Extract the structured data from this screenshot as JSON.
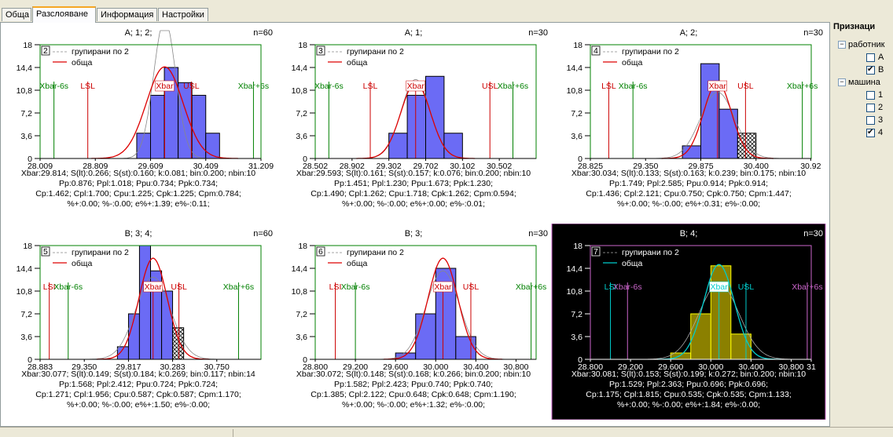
{
  "tabs": [
    "Обща",
    "Разслояване",
    "Информация",
    "Настройки"
  ],
  "active_tab": 1,
  "sidebar": {
    "title": "Признаци",
    "groups": [
      {
        "label": "работник",
        "items": [
          {
            "label": "А",
            "checked": false
          },
          {
            "label": "В",
            "checked": true
          }
        ]
      },
      {
        "label": "машина",
        "items": [
          {
            "label": "1",
            "checked": false
          },
          {
            "label": "2",
            "checked": false
          },
          {
            "label": "3",
            "checked": false
          },
          {
            "label": "4",
            "checked": true
          }
        ]
      }
    ]
  },
  "chart_data": [
    {
      "type": "bar",
      "title": "А; 1; 2;",
      "n": "n=60",
      "index": "2",
      "dark": false,
      "legend": [
        "групирани по 2",
        "обща"
      ],
      "yticks": [
        "18",
        "14,4",
        "10,8",
        "7,2",
        "3,6",
        "0"
      ],
      "xticks": [
        "28.009",
        "28.809",
        "29.609",
        "30.409",
        "31.209"
      ],
      "xlim": [
        28.009,
        31.209
      ],
      "ylim": [
        0,
        18
      ],
      "bins": [
        {
          "x0": 29.409,
          "x1": 29.609,
          "v": 4
        },
        {
          "x0": 29.609,
          "x1": 29.809,
          "v": 10
        },
        {
          "x0": 29.809,
          "x1": 30.009,
          "v": 14.4
        },
        {
          "x0": 30.009,
          "x1": 30.209,
          "v": 12
        },
        {
          "x0": 30.209,
          "x1": 30.409,
          "v": 10
        },
        {
          "x0": 30.409,
          "x1": 30.609,
          "v": 4
        }
      ],
      "hatched": [],
      "lines": [
        {
          "label": "Xbar-6s",
          "x": 28.21,
          "color": "#008000"
        },
        {
          "label": "LSL",
          "x": 28.7,
          "color": "#cc0000"
        },
        {
          "label": "Xbar",
          "x": 29.814,
          "color": "#cc0000"
        },
        {
          "label": "USL",
          "x": 30.2,
          "color": "#cc0000"
        },
        {
          "label": "Xbar+6s",
          "x": 31.1,
          "color": "#008000"
        }
      ],
      "curve": {
        "mean": 29.814,
        "sd": 0.266,
        "peak": 14.5
      },
      "curve2": {
        "mean": 29.814,
        "sd": 0.16,
        "peak": 22
      },
      "stats": [
        "Xbar:29.814; S(lt):0.266; S(st):0.160; k:0.081; bin:0.200; nbin:10",
        "Pp:0.876; Ppl:1.018; Ppu:0.734; Ppk:0.734;",
        "Cp:1.462; Cpl:1.700; Cpu:1.225; Cpk:1.225; Cpm:0.784;",
        "%+:0.00; %-:0.00; e%+:1.39; e%-:0.11;"
      ]
    },
    {
      "type": "bar",
      "title": "А; 1;",
      "n": "n=30",
      "index": "3",
      "dark": false,
      "legend": [
        "групирани по 2",
        "обща"
      ],
      "yticks": [
        "18",
        "14,4",
        "10,8",
        "7,2",
        "3,6",
        "0"
      ],
      "xticks": [
        "28.502",
        "28.902",
        "29.302",
        "29.702",
        "30.102",
        "30.502"
      ],
      "xlim": [
        28.502,
        30.902
      ],
      "ylim": [
        0,
        18
      ],
      "bins": [
        {
          "x0": 29.302,
          "x1": 29.502,
          "v": 4
        },
        {
          "x0": 29.502,
          "x1": 29.702,
          "v": 10
        },
        {
          "x0": 29.702,
          "x1": 29.902,
          "v": 13
        },
        {
          "x0": 29.902,
          "x1": 30.102,
          "v": 4
        }
      ],
      "hatched": [],
      "lines": [
        {
          "label": "Xbar-6s",
          "x": 28.65,
          "color": "#008000"
        },
        {
          "label": "LSL",
          "x": 29.1,
          "color": "#cc0000"
        },
        {
          "label": "Xbar",
          "x": 29.593,
          "color": "#cc0000"
        },
        {
          "label": "USL",
          "x": 30.4,
          "color": "#cc0000"
        },
        {
          "label": "Xbar+6s",
          "x": 30.65,
          "color": "#008000"
        }
      ],
      "curve": {
        "mean": 29.593,
        "sd": 0.161,
        "peak": 12
      },
      "curve2": {
        "mean": 29.593,
        "sd": 0.157,
        "peak": 12.5
      },
      "stats": [
        "Xbar:29.593; S(lt):0.161; S(st):0.157; k:0.076; bin:0.200; nbin:10",
        "Pp:1.451; Ppl:1.230; Ppu:1.673; Ppk:1.230;",
        "Cp:1.490; Cpl:1.262; Cpu:1.718; Cpk:1.262; Cpm:0.594;",
        "%+:0.00; %-:0.00; e%+:0.00; e%-:0.01;"
      ]
    },
    {
      "type": "bar",
      "title": "А; 2;",
      "n": "n=30",
      "index": "4",
      "dark": false,
      "legend": [
        "групирани по 2",
        "обща"
      ],
      "yticks": [
        "18",
        "14,4",
        "10,8",
        "7,2",
        "3,6",
        "0"
      ],
      "xticks": [
        "28.825",
        "29.350",
        "29.875",
        "30.400",
        "30.92"
      ],
      "xlim": [
        28.825,
        30.925
      ],
      "ylim": [
        0,
        18
      ],
      "bins": [
        {
          "x0": 29.7,
          "x1": 29.875,
          "v": 2
        },
        {
          "x0": 29.875,
          "x1": 30.05,
          "v": 15
        },
        {
          "x0": 30.05,
          "x1": 30.225,
          "v": 7.8
        }
      ],
      "hatched": [
        {
          "x0": 30.225,
          "x1": 30.4,
          "v": 4
        }
      ],
      "lines": [
        {
          "label": "LSL",
          "x": 29.0,
          "color": "#cc0000"
        },
        {
          "label": "Xbar-6s",
          "x": 29.23,
          "color": "#008000"
        },
        {
          "label": "Xbar",
          "x": 30.034,
          "color": "#cc0000"
        },
        {
          "label": "USL",
          "x": 30.3,
          "color": "#cc0000"
        },
        {
          "label": "Xbar+6s",
          "x": 30.84,
          "color": "#008000"
        }
      ],
      "curve": {
        "mean": 30.034,
        "sd": 0.133,
        "peak": 12
      },
      "curve2": {
        "mean": 30.034,
        "sd": 0.163,
        "peak": 10.5
      },
      "stats": [
        "Xbar:30.034; S(lt):0.133; S(st):0.163; k:0.239; bin:0.175; nbin:10",
        "Pp:1.749; Ppl:2.585; Ppu:0.914; Ppk:0.914;",
        "Cp:1.436; Cpl:2.121; Cpu:0.750; Cpk:0.750; Cpm:1.447;",
        "%+:0.00; %-:0.00; e%+:0.31; e%-:0.00;"
      ]
    },
    {
      "type": "bar",
      "title": "В; 3; 4;",
      "n": "n=60",
      "index": "5",
      "dark": false,
      "legend": [
        "групирани по 2",
        "обща"
      ],
      "yticks": [
        "18",
        "14,4",
        "10,8",
        "7,2",
        "3,6",
        "0"
      ],
      "xticks": [
        "28.883",
        "29.350",
        "29.817",
        "30.283",
        "30.750"
      ],
      "xlim": [
        28.883,
        31.217
      ],
      "ylim": [
        0,
        18
      ],
      "bins": [
        {
          "x0": 29.7,
          "x1": 29.817,
          "v": 2
        },
        {
          "x0": 29.817,
          "x1": 29.933,
          "v": 7.2
        },
        {
          "x0": 29.933,
          "x1": 30.05,
          "v": 18
        },
        {
          "x0": 30.05,
          "x1": 30.167,
          "v": 14
        },
        {
          "x0": 30.167,
          "x1": 30.283,
          "v": 10.8
        }
      ],
      "hatched": [
        {
          "x0": 30.283,
          "x1": 30.4,
          "v": 5
        }
      ],
      "lines": [
        {
          "label": "LSI",
          "x": 28.98,
          "color": "#cc0000"
        },
        {
          "label": "Xbar-6s",
          "x": 29.18,
          "color": "#008000"
        },
        {
          "label": "Xbar",
          "x": 30.077,
          "color": "#cc0000"
        },
        {
          "label": "USL",
          "x": 30.35,
          "color": "#cc0000"
        },
        {
          "label": "Xbar+6s",
          "x": 30.98,
          "color": "#008000"
        }
      ],
      "curve": {
        "mean": 30.077,
        "sd": 0.149,
        "peak": 16
      },
      "curve2": {
        "mean": 30.077,
        "sd": 0.184,
        "peak": 13
      },
      "stats": [
        "Xbar:30.077; S(lt):0.149; S(st):0.184; k:0.269; bin:0.117; nbin:14",
        "Pp:1.568; Ppl:2.412; Ppu:0.724; Ppk:0.724;",
        "Cp:1.271; Cpl:1.956; Cpu:0.587; Cpk:0.587; Cpm:1.170;",
        "%+:0.00; %-:0.00; e%+:1.50; e%-:0.00;"
      ]
    },
    {
      "type": "bar",
      "title": "В; 3;",
      "n": "n=30",
      "index": "6",
      "dark": false,
      "legend": [
        "групирани по 2",
        "обща"
      ],
      "yticks": [
        "18",
        "14,4",
        "10,8",
        "7,2",
        "3,6",
        "0"
      ],
      "xticks": [
        "28.800",
        "29.200",
        "29.600",
        "30.000",
        "30.400",
        "30.800"
      ],
      "xlim": [
        28.8,
        31.0
      ],
      "ylim": [
        0,
        18
      ],
      "bins": [
        {
          "x0": 29.6,
          "x1": 29.8,
          "v": 1
        },
        {
          "x0": 29.8,
          "x1": 30.0,
          "v": 7.2
        },
        {
          "x0": 30.0,
          "x1": 30.2,
          "v": 14.4
        },
        {
          "x0": 30.2,
          "x1": 30.4,
          "v": 3.6
        }
      ],
      "hatched": [],
      "lines": [
        {
          "label": "LSI",
          "x": 29.0,
          "color": "#cc0000"
        },
        {
          "label": "Xbar-6s",
          "x": 29.2,
          "color": "#008000"
        },
        {
          "label": "Xbar",
          "x": 30.072,
          "color": "#cc0000"
        },
        {
          "label": "USL",
          "x": 30.35,
          "color": "#cc0000"
        },
        {
          "label": "Xbar+6s",
          "x": 30.95,
          "color": "#008000"
        }
      ],
      "curve": {
        "mean": 30.072,
        "sd": 0.148,
        "peak": 16
      },
      "curve2": {
        "mean": 30.072,
        "sd": 0.168,
        "peak": 14
      },
      "stats": [
        "Xbar:30.072; S(lt):0.148; S(st):0.168; k:0.266; bin:0.200; nbin:10",
        "Pp:1.582; Ppl:2.423; Ppu:0.740; Ppk:0.740;",
        "Cp:1.385; Cpl:2.122; Cpu:0.648; Cpk:0.648; Cpm:1.190;",
        "%+:0.00; %-:0.00; e%+:1.32; e%-:0.00;"
      ]
    },
    {
      "type": "bar",
      "title": "В; 4;",
      "n": "n=30",
      "index": "7",
      "dark": true,
      "legend": [
        "групирани по 2",
        "обща"
      ],
      "yticks": [
        "18",
        "14,4",
        "10,8",
        "7,2",
        "3,6",
        "0"
      ],
      "xticks": [
        "28.800",
        "29.200",
        "29.600",
        "30.000",
        "30.400",
        "30.800",
        "31"
      ],
      "xlim": [
        28.8,
        31.0
      ],
      "ylim": [
        0,
        18
      ],
      "bins": [
        {
          "x0": 29.6,
          "x1": 29.8,
          "v": 1
        },
        {
          "x0": 29.8,
          "x1": 30.0,
          "v": 7.2
        },
        {
          "x0": 30.0,
          "x1": 30.2,
          "v": 14.8
        },
        {
          "x0": 30.2,
          "x1": 30.4,
          "v": 4
        }
      ],
      "hatched": [],
      "lines": [
        {
          "label": "LSI",
          "x": 29.0,
          "color": "#00cccc"
        },
        {
          "label": "Xbar-6s",
          "x": 29.17,
          "color": "#cc66cc"
        },
        {
          "label": "Xbar",
          "x": 30.081,
          "color": "#00cccc"
        },
        {
          "label": "USL",
          "x": 30.35,
          "color": "#00cccc"
        },
        {
          "label": "Xbar+6s",
          "x": 30.96,
          "color": "#cc66cc"
        }
      ],
      "curve": {
        "mean": 30.081,
        "sd": 0.153,
        "peak": 15
      },
      "curve2": {
        "mean": 30.081,
        "sd": 0.199,
        "peak": 12
      },
      "stats": [
        "Xbar:30.081; S(lt):0.153; S(st):0.199; k:0.272; bin:0.200; nbin:10",
        "Pp:1.529; Ppl:2.363; Ppu:0.696; Ppk:0.696;",
        "Cp:1.175; Cpl:1.815; Cpu:0.535; Cpk:0.535; Cpm:1.133;",
        "%+:0.00; %-:0.00; e%+:1.84; e%-:0.00;"
      ]
    }
  ]
}
